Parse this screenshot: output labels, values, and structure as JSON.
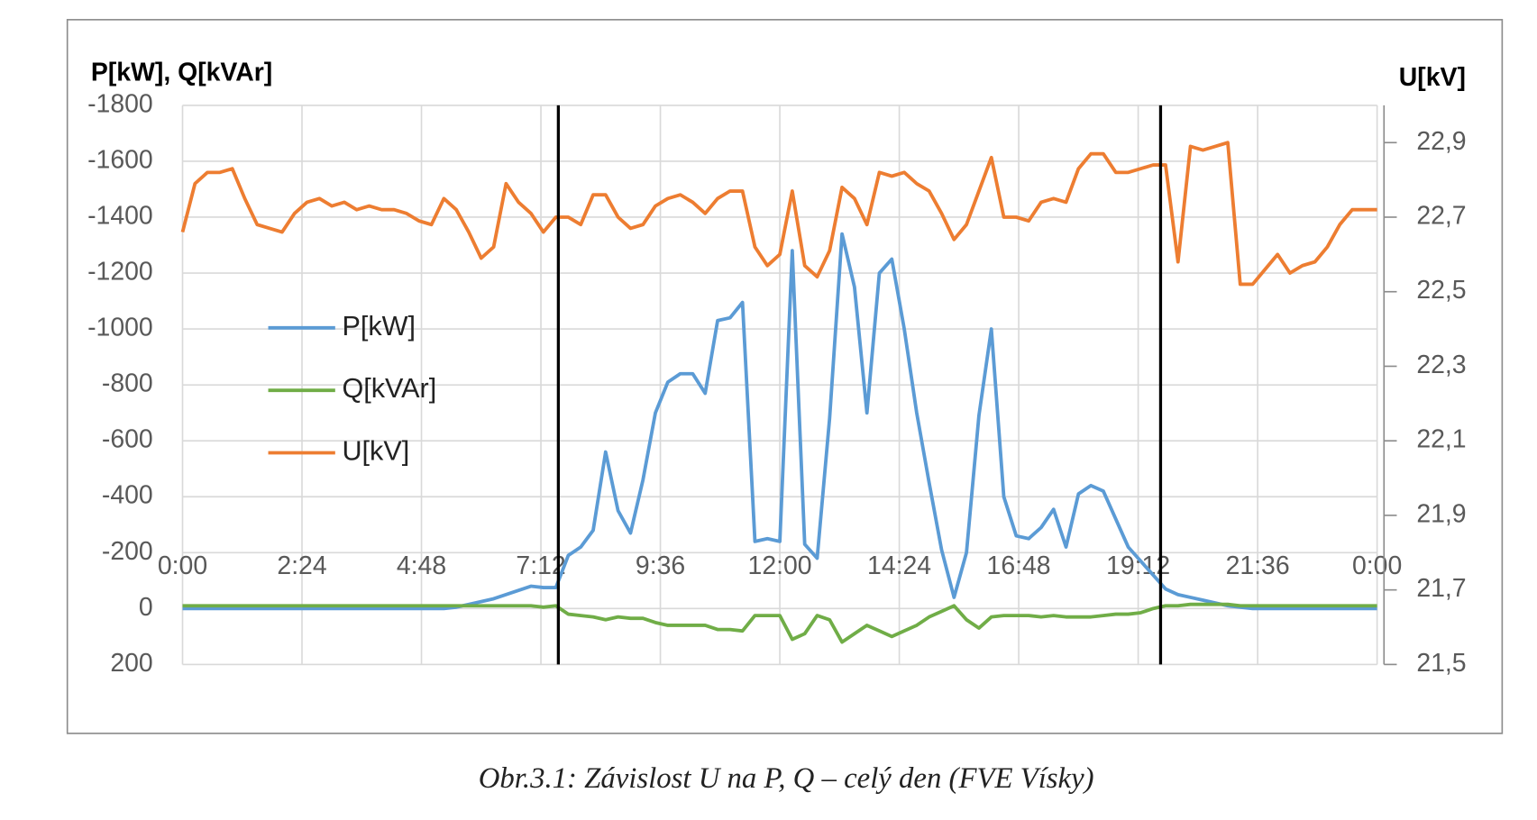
{
  "chart_data": {
    "type": "line",
    "y_title": "P[kW], Q[kVAr]",
    "y2_title": "U[kV]",
    "caption": "Obr.3.1: Závislost U na P, Q – celý den (FVE Vísky)",
    "x": [
      0,
      0.25,
      0.5,
      0.75,
      1,
      1.25,
      1.5,
      1.75,
      2,
      2.25,
      2.5,
      2.75,
      3,
      3.25,
      3.5,
      3.75,
      4,
      4.25,
      4.5,
      4.75,
      5,
      5.25,
      5.5,
      5.75,
      6,
      6.25,
      6.5,
      6.75,
      7,
      7.25,
      7.5,
      7.75,
      8,
      8.25,
      8.5,
      8.75,
      9,
      9.25,
      9.5,
      9.75,
      10,
      10.25,
      10.5,
      10.75,
      11,
      11.25,
      11.5,
      11.75,
      12,
      12.25,
      12.5,
      12.75,
      13,
      13.25,
      13.5,
      13.75,
      14,
      14.25,
      14.5,
      14.75,
      15,
      15.25,
      15.5,
      15.75,
      16,
      16.25,
      16.5,
      16.75,
      17,
      17.25,
      17.5,
      17.75,
      18,
      18.25,
      18.5,
      18.75,
      19,
      19.25,
      19.5,
      19.75,
      20,
      20.25,
      20.5,
      20.75,
      21,
      21.25,
      21.5,
      21.75,
      22,
      22.25,
      22.5,
      22.75,
      23,
      23.25,
      23.5,
      23.75,
      24
    ],
    "series": [
      {
        "name": "P[kW]",
        "color": "#5b9bd5",
        "values": [
          0,
          0,
          0,
          0,
          0,
          0,
          0,
          0,
          0,
          0,
          0,
          0,
          0,
          0,
          0,
          0,
          0,
          0,
          0,
          0,
          0,
          0,
          -5,
          -15,
          -25,
          -35,
          -50,
          -65,
          -80,
          -75,
          -75,
          -190,
          -220,
          -280,
          -560,
          -350,
          -270,
          -460,
          -700,
          -810,
          -840,
          -840,
          -770,
          -1030,
          -1040,
          -1095,
          -240,
          -250,
          -240,
          -1280,
          -230,
          -180,
          -680,
          -1340,
          -1150,
          -700,
          -1200,
          -1250,
          -1000,
          -700,
          -450,
          -210,
          -40,
          -200,
          -690,
          -1000,
          -400,
          -260,
          -250,
          -290,
          -355,
          -220,
          -410,
          -440,
          -420,
          -320,
          -220,
          -170,
          -120,
          -70,
          -50,
          -40,
          -30,
          -20,
          -10,
          -5,
          0,
          0,
          0,
          0,
          0,
          0,
          0,
          0,
          0,
          0,
          0
        ]
      },
      {
        "name": "Q[kVAr]",
        "color": "#70ad47",
        "values": [
          -10,
          -10,
          -10,
          -10,
          -10,
          -10,
          -10,
          -10,
          -10,
          -10,
          -10,
          -10,
          -10,
          -10,
          -10,
          -10,
          -10,
          -10,
          -10,
          -10,
          -10,
          -10,
          -10,
          -10,
          -10,
          -10,
          -10,
          -10,
          -10,
          -5,
          -10,
          20,
          25,
          30,
          40,
          30,
          35,
          35,
          50,
          60,
          60,
          60,
          60,
          75,
          75,
          80,
          25,
          25,
          25,
          110,
          90,
          25,
          40,
          120,
          90,
          60,
          80,
          100,
          80,
          60,
          30,
          10,
          -10,
          40,
          70,
          30,
          25,
          25,
          25,
          30,
          25,
          30,
          30,
          30,
          25,
          20,
          20,
          15,
          0,
          -10,
          -10,
          -15,
          -15,
          -15,
          -15,
          -10,
          -10,
          -10,
          -10,
          -10,
          -10,
          -10,
          -10,
          -10,
          -10,
          -10,
          -10
        ]
      },
      {
        "name": "U[kV]",
        "color": "#ed7d31",
        "axis": "y2",
        "values": [
          22.66,
          22.79,
          22.82,
          22.82,
          22.83,
          22.75,
          22.68,
          22.67,
          22.66,
          22.71,
          22.74,
          22.75,
          22.73,
          22.74,
          22.72,
          22.73,
          22.72,
          22.72,
          22.71,
          22.69,
          22.68,
          22.75,
          22.72,
          22.66,
          22.59,
          22.62,
          22.79,
          22.74,
          22.71,
          22.66,
          22.7,
          22.7,
          22.68,
          22.76,
          22.76,
          22.7,
          22.67,
          22.68,
          22.73,
          22.75,
          22.76,
          22.74,
          22.71,
          22.75,
          22.77,
          22.77,
          22.62,
          22.57,
          22.6,
          22.77,
          22.57,
          22.54,
          22.61,
          22.78,
          22.75,
          22.68,
          22.82,
          22.81,
          22.82,
          22.79,
          22.77,
          22.71,
          22.64,
          22.68,
          22.77,
          22.86,
          22.7,
          22.7,
          22.69,
          22.74,
          22.75,
          22.74,
          22.83,
          22.87,
          22.87,
          22.82,
          22.82,
          22.83,
          22.84,
          22.84,
          22.58,
          22.89,
          22.88,
          22.89,
          22.9,
          22.52,
          22.52,
          22.56,
          22.6,
          22.55,
          22.57,
          22.58,
          22.62,
          22.68,
          22.72,
          22.72,
          22.72
        ]
      }
    ],
    "reference_lines": [
      7.55,
      19.65
    ],
    "xlim": [
      0,
      24
    ],
    "xticks": [
      {
        "value": 0,
        "label": "0:00"
      },
      {
        "value": 2.4,
        "label": "2:24"
      },
      {
        "value": 4.8,
        "label": "4:48"
      },
      {
        "value": 7.2,
        "label": "7:12"
      },
      {
        "value": 9.6,
        "label": "9:36"
      },
      {
        "value": 12,
        "label": "12:00"
      },
      {
        "value": 14.4,
        "label": "14:24"
      },
      {
        "value": 16.8,
        "label": "16:48"
      },
      {
        "value": 19.2,
        "label": "19:12"
      },
      {
        "value": 21.6,
        "label": "21:36"
      },
      {
        "value": 24,
        "label": "0:00"
      }
    ],
    "ylim": [
      200,
      -1800
    ],
    "yticks": [
      200,
      0,
      -200,
      -400,
      -600,
      -800,
      -1000,
      -1200,
      -1400,
      -1600,
      -1800
    ],
    "y2lim": [
      21.5,
      23.0
    ],
    "y2ticks": [
      {
        "value": 21.5,
        "label": "21,5"
      },
      {
        "value": 21.7,
        "label": "21,7"
      },
      {
        "value": 21.9,
        "label": "21,9"
      },
      {
        "value": 22.1,
        "label": "22,1"
      },
      {
        "value": 22.3,
        "label": "22,3"
      },
      {
        "value": 22.5,
        "label": "22,5"
      },
      {
        "value": 22.7,
        "label": "22,7"
      },
      {
        "value": 22.9,
        "label": "22,9"
      }
    ],
    "grid": true,
    "legend": "left"
  }
}
